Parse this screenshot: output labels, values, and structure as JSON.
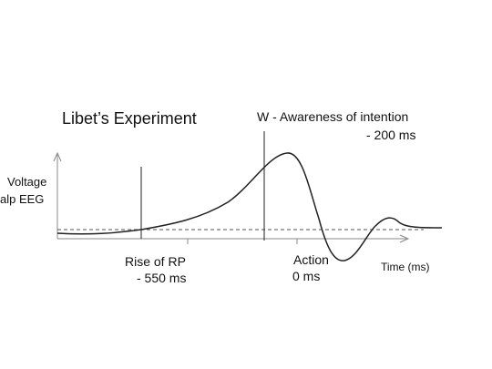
{
  "diagram": {
    "title": "Libet’s Experiment",
    "y_axis_label_line1": "Voltage",
    "y_axis_label_line2": "alp EEG",
    "x_axis_label": "Time (ms)",
    "events": {
      "rise_of_rp": {
        "label": "Rise of RP",
        "time": "- 550 ms"
      },
      "awareness": {
        "label": "W - Awareness of intention",
        "time": "- 200 ms"
      },
      "action": {
        "label": "Action",
        "time": "0 ms"
      }
    },
    "colors": {
      "line": "#222222",
      "baseline": "#555555",
      "axis": "#888888"
    }
  }
}
